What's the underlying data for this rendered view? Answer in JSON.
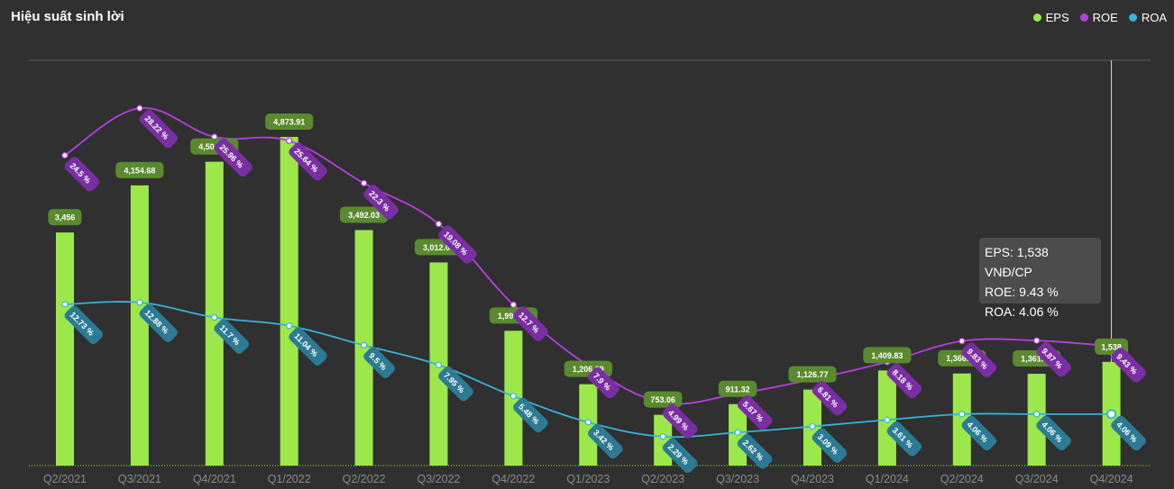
{
  "title": "Hiệu suất sinh lời",
  "legend": [
    {
      "label": "EPS",
      "color": "#9ce84a"
    },
    {
      "label": "ROE",
      "color": "#b73de0"
    },
    {
      "label": "ROA",
      "color": "#34b4d8"
    }
  ],
  "tooltip": {
    "eps": "EPS: 1,538 VNĐ/CP",
    "roe": "ROE: 9.43 %",
    "roa": "ROA: 4.06 %"
  },
  "chart_data": {
    "type": "bar",
    "categories": [
      "Q2/2021",
      "Q3/2021",
      "Q4/2021",
      "Q1/2022",
      "Q2/2022",
      "Q3/2022",
      "Q4/2022",
      "Q1/2023",
      "Q2/2023",
      "Q3/2023",
      "Q4/2023",
      "Q1/2024",
      "Q2/2024",
      "Q3/2024",
      "Q4/2024"
    ],
    "series": [
      {
        "name": "EPS",
        "type": "bar",
        "color": "#9ce84a",
        "values": [
          3456,
          4154.68,
          4504.95,
          4873.91,
          3492.03,
          3012.07,
          1998.58,
          1206.69,
          753.06,
          911.32,
          1126.77,
          1409.83,
          1366.04,
          1361.37,
          1538
        ],
        "labels": [
          "3,456",
          "4,154.68",
          "4,504.95",
          "4,873.91",
          "3,492.03",
          "3,012.07",
          "1,998.58",
          "1,206.69",
          "753.06",
          "911.32",
          "1,126.77",
          "1,409.83",
          "1,366.04",
          "1,361.37",
          "1,538"
        ]
      },
      {
        "name": "ROE",
        "type": "line",
        "color": "#b73de0",
        "values": [
          24.5,
          28.22,
          25.96,
          25.64,
          22.3,
          19.08,
          12.7,
          7.9,
          4.99,
          5.67,
          6.81,
          8.18,
          9.83,
          9.87,
          9.43
        ],
        "labels": [
          "24.5 %",
          "28.22 %",
          "25.96 %",
          "25.64 %",
          "22.3 %",
          "19.08 %",
          "12.7 %",
          "7.9 %",
          "4.99 %",
          "5.67 %",
          "6.81 %",
          "8.18 %",
          "9.83 %",
          "9.87 %",
          "9.43 %"
        ]
      },
      {
        "name": "ROA",
        "type": "line",
        "color": "#34b4d8",
        "values": [
          12.73,
          12.88,
          11.7,
          11.04,
          9.5,
          7.95,
          5.48,
          3.42,
          2.29,
          2.62,
          3.09,
          3.61,
          4.06,
          4.06,
          4.06
        ],
        "labels": [
          "12.73 %",
          "12.88 %",
          "11.7 %",
          "11.04 %",
          "9.5 %",
          "7.95 %",
          "5.48 %",
          "3.42 %",
          "2.29 %",
          "2.62 %",
          "3.09 %",
          "3.61 %",
          "4.06 %",
          "4.06 %",
          "4.06 %"
        ]
      }
    ],
    "grid": false,
    "legend_position": "top-right",
    "highlighted_category": "Q4/2024"
  }
}
